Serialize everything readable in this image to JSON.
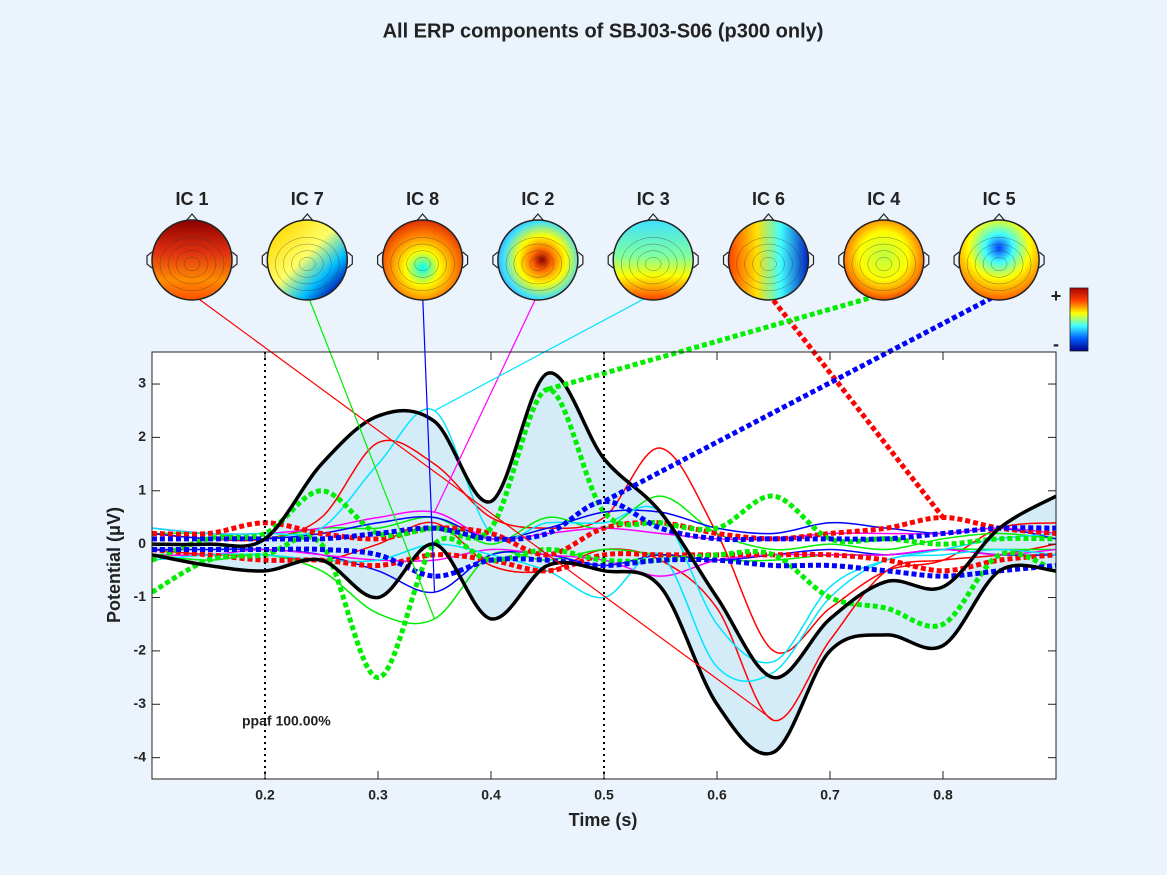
{
  "chart_data": {
    "type": "envtopo",
    "title": "All ERP components of SBJ03-S06 (p300 only)",
    "x_label": "Time (s)",
    "y_label": "Potential (μV)",
    "annotation": "ppaf 100.00%",
    "xlim": [
      0.1,
      0.9
    ],
    "ylim": [
      -4.4,
      3.6
    ],
    "xticks": [
      0.2,
      0.3,
      0.4,
      0.5,
      0.6,
      0.7,
      0.8
    ],
    "yticks": [
      -4,
      -3,
      -2,
      -1,
      0,
      1,
      2,
      3
    ],
    "vlines": [
      0.2,
      0.5
    ],
    "colorbar": {
      "max_label": "+",
      "min_label": "-"
    },
    "x": [
      0.1,
      0.15,
      0.2,
      0.25,
      0.3,
      0.35,
      0.4,
      0.45,
      0.5,
      0.55,
      0.6,
      0.65,
      0.7,
      0.75,
      0.8,
      0.85,
      0.9
    ],
    "envelope": {
      "color": "#000000",
      "fill": "#d4ecf8",
      "upper": [
        0,
        0,
        0.1,
        1.5,
        2.4,
        2.3,
        0.8,
        3.2,
        1.6,
        0.6,
        -1.0,
        -2.5,
        -1.4,
        -0.7,
        -0.8,
        0.3,
        0.9
      ],
      "lower": [
        -0.2,
        -0.4,
        -0.5,
        -0.3,
        -1.0,
        0.0,
        -1.4,
        -0.4,
        -0.5,
        -0.8,
        -3.0,
        -3.9,
        -2.0,
        -1.7,
        -1.9,
        -0.5,
        -0.5
      ]
    },
    "series": [
      {
        "name": "IC 1",
        "color": "#ff0000",
        "dashed": false,
        "upper": [
          0.2,
          0.1,
          0.1,
          0.5,
          1.9,
          1.5,
          0.5,
          0.3,
          0.5,
          1.8,
          0.2,
          -2.0,
          -1.2,
          -0.5,
          -0.3,
          0.3,
          0.4
        ],
        "lower": [
          -0.1,
          -0.2,
          -0.2,
          -0.3,
          0.0,
          0.4,
          -0.4,
          -0.5,
          -0.1,
          -0.3,
          -1.2,
          -3.3,
          -1.8,
          -0.5,
          -0.3,
          -0.2,
          0.0
        ]
      },
      {
        "name": "IC 7",
        "color": "#00ee00",
        "dashed": false,
        "upper": [
          0.2,
          0.2,
          0.1,
          0.3,
          0.3,
          0.5,
          0.0,
          0.5,
          0.3,
          0.9,
          0.2,
          -0.1,
          0.0,
          -0.1,
          0.1,
          0.2,
          0.1
        ],
        "lower": [
          -0.2,
          -0.3,
          -0.2,
          -0.5,
          -1.3,
          -1.4,
          -0.2,
          -0.3,
          -0.1,
          -0.2,
          -0.3,
          -0.3,
          -0.2,
          -0.2,
          -0.1,
          -0.1,
          -0.1
        ]
      },
      {
        "name": "IC 8",
        "color": "#0000ff",
        "dashed": false,
        "upper": [
          0.2,
          0.1,
          0.1,
          0.2,
          0.4,
          0.5,
          0.1,
          0.3,
          0.6,
          0.6,
          0.3,
          0.2,
          0.4,
          0.3,
          0.2,
          0.3,
          0.1
        ],
        "lower": [
          -0.1,
          -0.1,
          -0.1,
          -0.2,
          -0.5,
          -0.9,
          -0.2,
          -0.2,
          -0.4,
          -0.2,
          -0.3,
          -0.2,
          -0.1,
          -0.2,
          -0.1,
          -0.2,
          -0.2
        ]
      },
      {
        "name": "IC 2",
        "color": "#ff00ff",
        "dashed": false,
        "upper": [
          0.3,
          0.2,
          0.2,
          0.3,
          0.5,
          0.6,
          0.1,
          0.2,
          0.3,
          0.2,
          0.1,
          0.1,
          0.2,
          0.2,
          0.2,
          0.3,
          0.2
        ],
        "lower": [
          -0.2,
          -0.2,
          -0.1,
          -0.2,
          -0.3,
          -0.3,
          -0.1,
          -0.2,
          -0.3,
          -0.6,
          -0.3,
          -0.2,
          -0.2,
          -0.2,
          -0.1,
          -0.2,
          -0.1
        ]
      },
      {
        "name": "IC 3",
        "color": "#00e5ff",
        "dashed": false,
        "upper": [
          0.3,
          0.2,
          0.2,
          0.3,
          1.5,
          2.5,
          0.2,
          0.4,
          0.4,
          0.6,
          -1.5,
          -2.2,
          -0.8,
          -0.3,
          -0.1,
          0.1,
          0.2
        ],
        "lower": [
          -0.3,
          -0.2,
          -0.2,
          -0.3,
          -0.3,
          0.0,
          -0.2,
          -0.5,
          -1.0,
          -0.2,
          -2.3,
          -2.4,
          -1.0,
          -0.3,
          -0.2,
          -0.1,
          -0.2
        ]
      },
      {
        "name": "IC 6",
        "color": "#ff0000",
        "dashed": true,
        "upper": [
          0.2,
          0.2,
          0.4,
          0.2,
          0.1,
          0.3,
          0.2,
          -0.2,
          0.3,
          0.4,
          0.2,
          0.1,
          0.2,
          0.3,
          0.5,
          0.3,
          0.2
        ],
        "lower": [
          -0.1,
          -0.2,
          -0.3,
          -0.3,
          -0.4,
          -0.2,
          -0.3,
          -0.5,
          -0.2,
          -0.2,
          -0.2,
          -0.2,
          -0.2,
          -0.3,
          -0.5,
          -0.3,
          -0.2
        ]
      },
      {
        "name": "IC 4",
        "color": "#00ee00",
        "dashed": true,
        "upper": [
          -0.3,
          0.1,
          0.2,
          1.0,
          0.2,
          0.3,
          0.3,
          2.9,
          0.6,
          0.4,
          0.3,
          0.9,
          0.1,
          0.1,
          0.0,
          0.1,
          0.1
        ],
        "lower": [
          -0.9,
          -0.3,
          -0.2,
          0.0,
          -2.5,
          0.0,
          -0.3,
          -0.1,
          -0.3,
          -0.3,
          -0.2,
          -0.2,
          -1.0,
          -1.2,
          -1.5,
          -0.2,
          -0.5
        ]
      },
      {
        "name": "IC 5",
        "color": "#0000ff",
        "dashed": true,
        "upper": [
          0.1,
          0.1,
          0.1,
          0.1,
          0.2,
          0.3,
          0.1,
          0.2,
          0.8,
          0.3,
          0.1,
          0.1,
          0.1,
          0.1,
          0.2,
          0.3,
          0.3
        ],
        "lower": [
          -0.1,
          -0.1,
          -0.1,
          -0.1,
          -0.2,
          -0.6,
          -0.3,
          -0.3,
          -0.4,
          -0.3,
          -0.3,
          -0.4,
          -0.4,
          -0.5,
          -0.6,
          -0.5,
          -0.4
        ]
      }
    ]
  }
}
